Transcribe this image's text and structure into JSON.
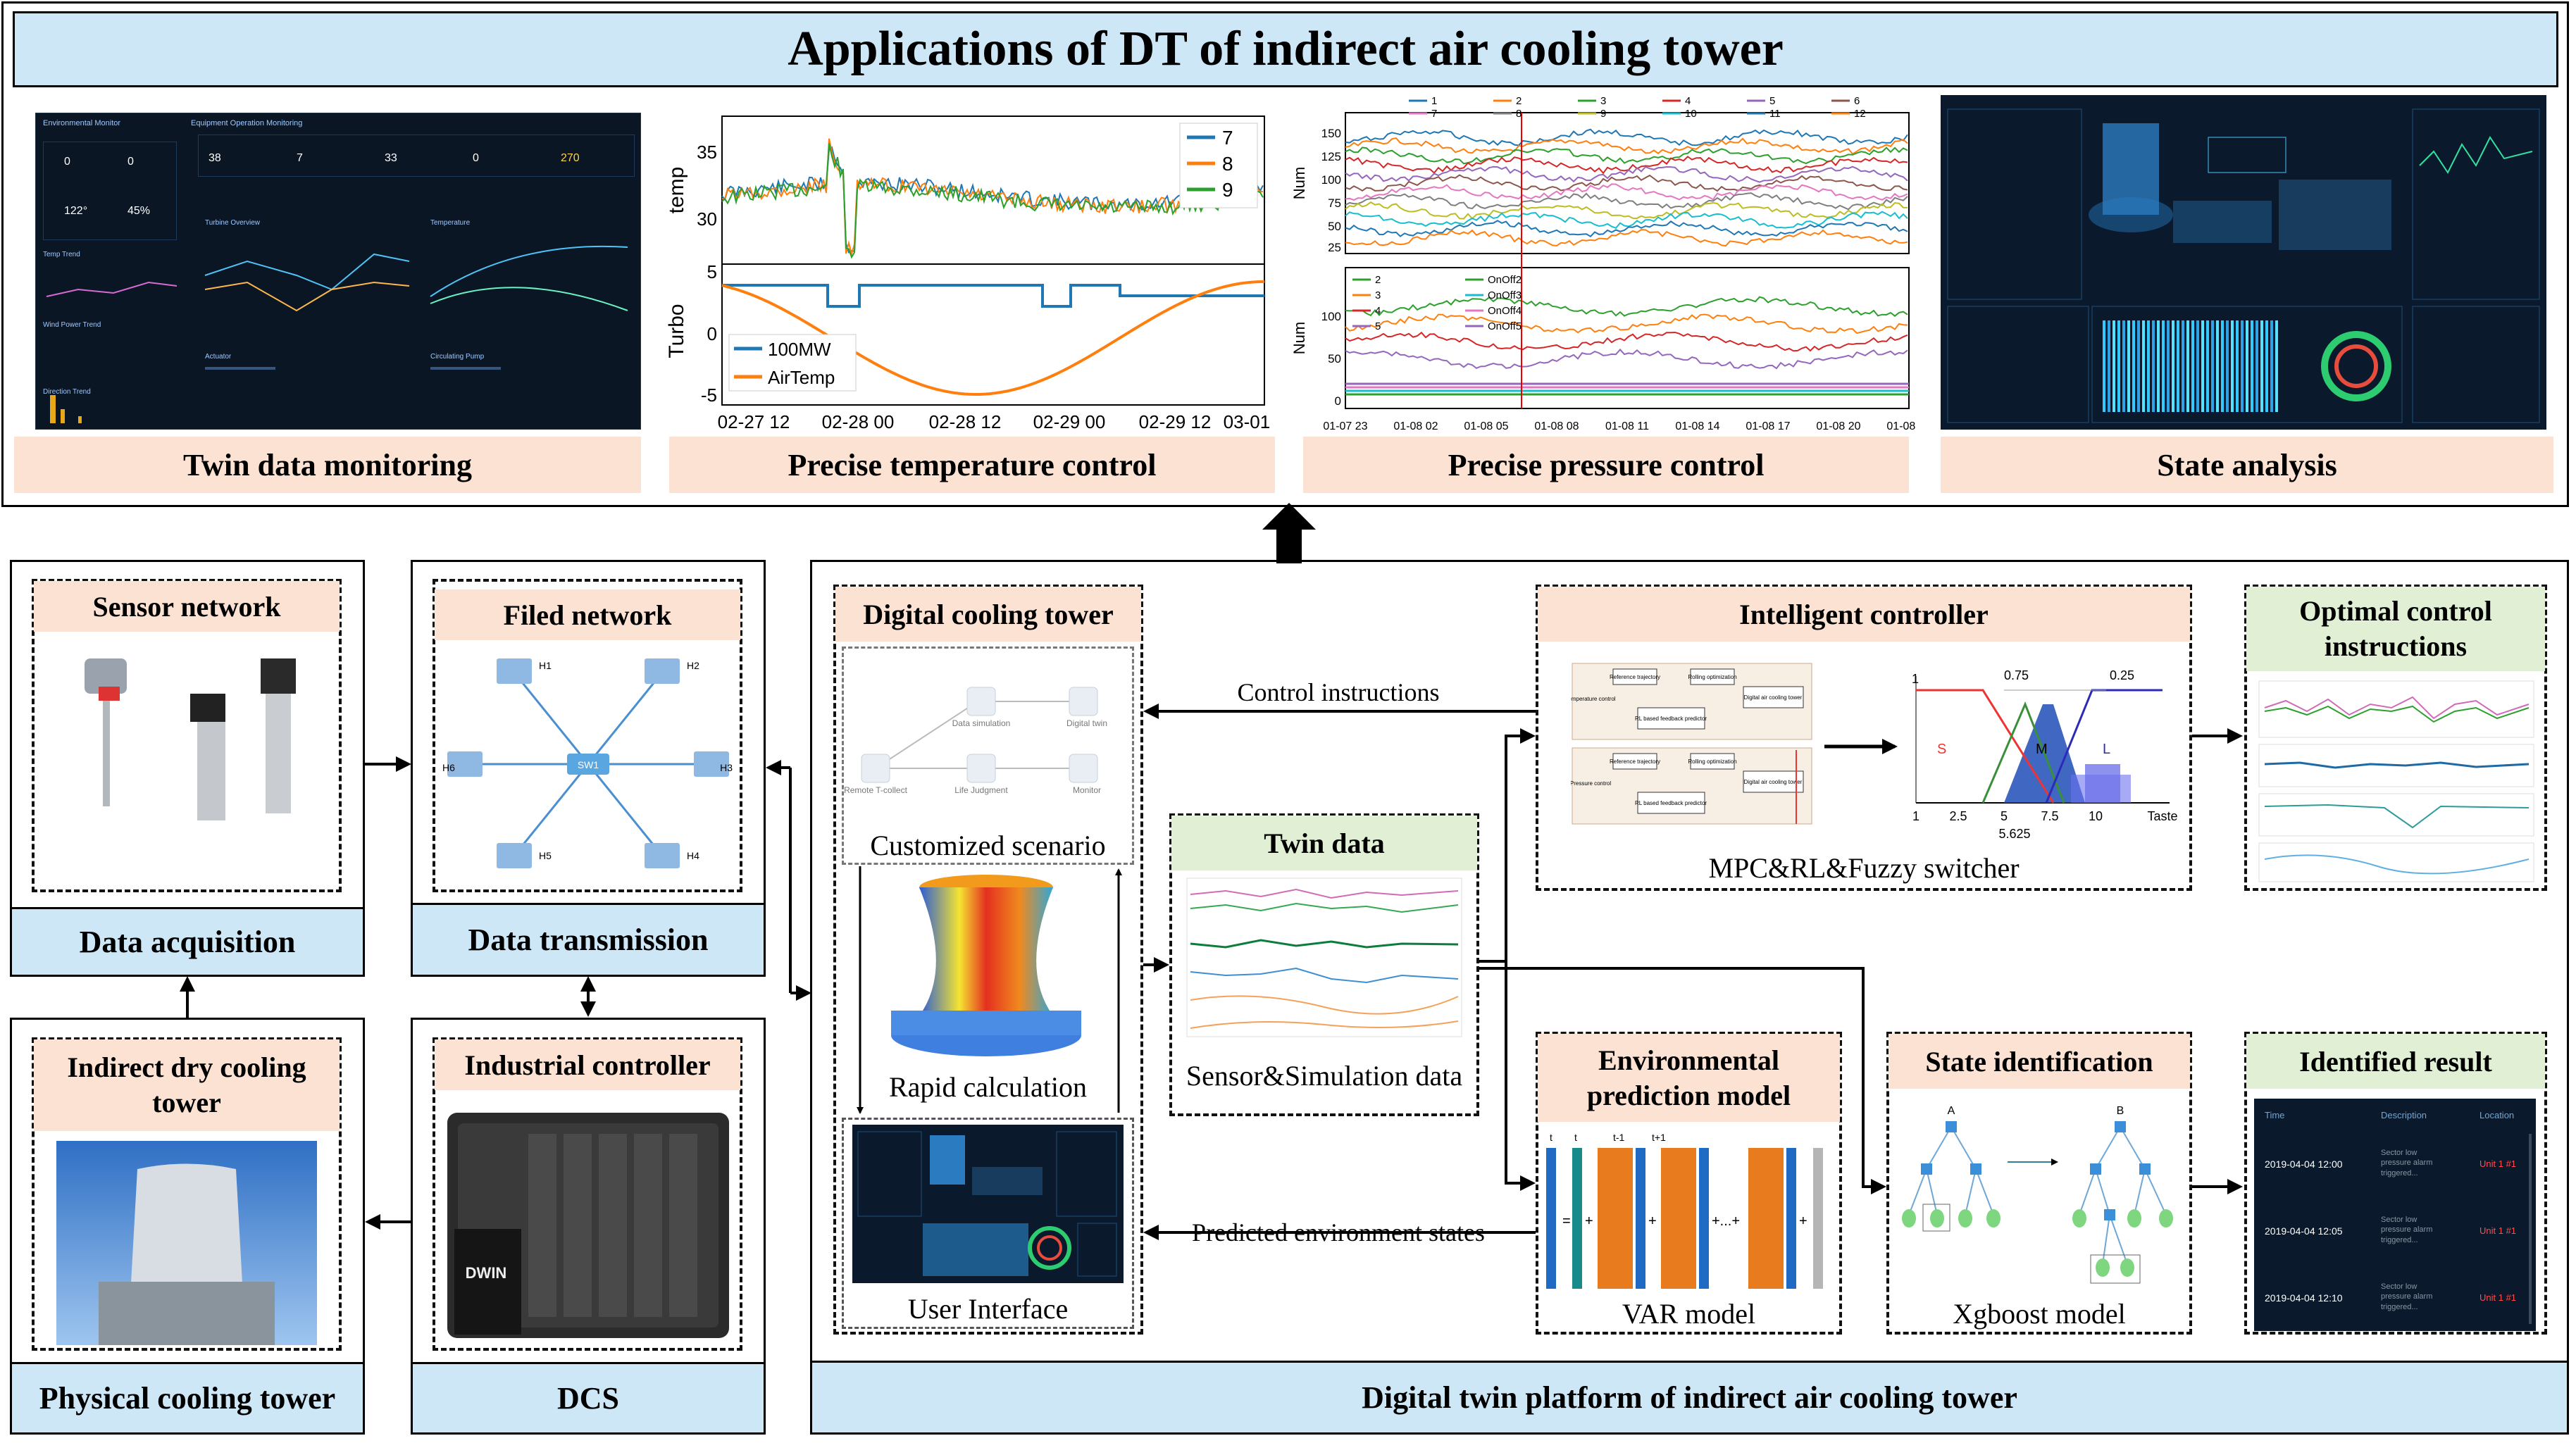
{
  "top": {
    "title": "Applications of DT of indirect air cooling tower",
    "panels": [
      {
        "label": "Twin data monitoring"
      },
      {
        "label": "Precise temperature control"
      },
      {
        "label": "Precise pressure control"
      },
      {
        "label": "State analysis"
      }
    ]
  },
  "temp_chart": {
    "ylabel_top": "temp",
    "ylabel_bottom": "Turbo",
    "legend_top": [
      "7",
      "8",
      "9"
    ],
    "legend_bottom": [
      "100MW",
      "AirTemp"
    ],
    "yticks_top": [
      "35",
      "30"
    ],
    "yticks_bottom": [
      "5",
      "0",
      "-5"
    ],
    "xticks": [
      "02-27 12",
      "02-28 00",
      "02-28 12",
      "02-29 00",
      "02-29 12",
      "03-01 00"
    ],
    "colors": {
      "s7": "#1f77b4",
      "s8": "#ff7f0e",
      "s9": "#2ca02c"
    }
  },
  "pressure_chart": {
    "ylabel": "Num",
    "legend_top": [
      "1",
      "2",
      "3",
      "4",
      "5",
      "6",
      "7",
      "8",
      "9",
      "10",
      "11",
      "12"
    ],
    "legend_bottom": [
      "2",
      "3",
      "4",
      "5",
      "OnOff2",
      "OnOff3",
      "OnOff4",
      "OnOff5"
    ],
    "yticks_top": [
      "150",
      "125",
      "100",
      "75",
      "50",
      "25"
    ],
    "yticks_bottom": [
      "100",
      "50",
      "0"
    ],
    "xticks": [
      "01-07 23",
      "01-08 02",
      "01-08 05",
      "01-08 08",
      "01-08 11",
      "01-08 14",
      "01-08 17",
      "01-08 20",
      "01-08 23"
    ]
  },
  "fuzzy": {
    "sets": [
      "S",
      "M",
      "L"
    ],
    "peaks": [
      "1",
      "0.75",
      "0.25"
    ],
    "xticks": [
      "1",
      "2.5",
      "5",
      "7.5",
      "10"
    ],
    "extra_tick": "5.625",
    "xlabel": "Taste"
  },
  "left": {
    "sensor_network": "Sensor network",
    "data_acquisition": "Data acquisition",
    "filed_network": "Filed network",
    "data_transmission": "Data transmission",
    "cooling_tower_label": "Indirect dry cooling tower",
    "physical_cooling_tower": "Physical cooling tower",
    "industrial_controller": "Industrial controller",
    "dcs": "DCS",
    "plc_brand": "DWIN",
    "hosts": [
      "H1",
      "H2",
      "H3",
      "H4",
      "H5",
      "H6"
    ],
    "switch": "SW1"
  },
  "platform": {
    "footer": "Digital twin platform of indirect air cooling tower",
    "digital_cooling_tower": "Digital cooling tower",
    "customized_scenario": "Customized scenario",
    "rapid_calculation": "Rapid calculation",
    "user_interface": "User Interface",
    "twin_data": "Twin data",
    "sensor_sim_data": "Sensor&Simulation data",
    "control_instructions": "Control instructions",
    "predicted_states": "Predicted environment states",
    "intelligent_controller": "Intelligent controller",
    "switcher": "MPC&RL&Fuzzy switcher",
    "optimal_control": "Optimal control instructions",
    "env_model": "Environmental prediction model",
    "var_model": "VAR model",
    "state_identification": "State identification",
    "xgboost_model": "Xgboost model",
    "identified_result": "Identified result",
    "tree_labels": [
      "A",
      "B"
    ],
    "scenario_nodes": [
      "Data simulation",
      "Digital twin",
      "Remote T-collect",
      "Life Judgment",
      "Monitor"
    ],
    "mpc_blocks": [
      "Reference trajectory",
      "Rolling optimization",
      "Digital air cooling tower",
      "RL based feedback predictor",
      "Temperature control",
      "Pressure control"
    ],
    "var_subscripts": [
      "t",
      "t",
      "t-1",
      "t+1"
    ]
  },
  "identified_table": {
    "headers": [
      "Time",
      "Description",
      "Location"
    ],
    "rows": [
      {
        "time": "2019-04-04 12:00",
        "desc": "Sector low pressure alarm triggered...",
        "loc": "Unit 1 #1"
      },
      {
        "time": "2019-04-04 12:05",
        "desc": "Sector low pressure alarm triggered...",
        "loc": "Unit 1 #1"
      },
      {
        "time": "2019-04-04 12:10",
        "desc": "Sector low pressure alarm triggered...",
        "loc": "Unit 1 #1"
      }
    ]
  },
  "monitoring_screen": {
    "env_title": "Environmental Monitor",
    "equip_title": "Equipment Operation Monitoring",
    "temp_trend": "Temp Trend",
    "wind_trend": "Wind Power Trend",
    "direction_trend": "Direction Trend",
    "turbine_overview": "Turbine Overview",
    "temperature": "Temperature",
    "actuator": "Actuator",
    "circulating_pump": "Circulating Pump",
    "kpis": [
      "38",
      "7",
      "33",
      "0",
      "270"
    ],
    "env_vals": [
      "0",
      "0",
      "122°",
      "45%"
    ]
  }
}
